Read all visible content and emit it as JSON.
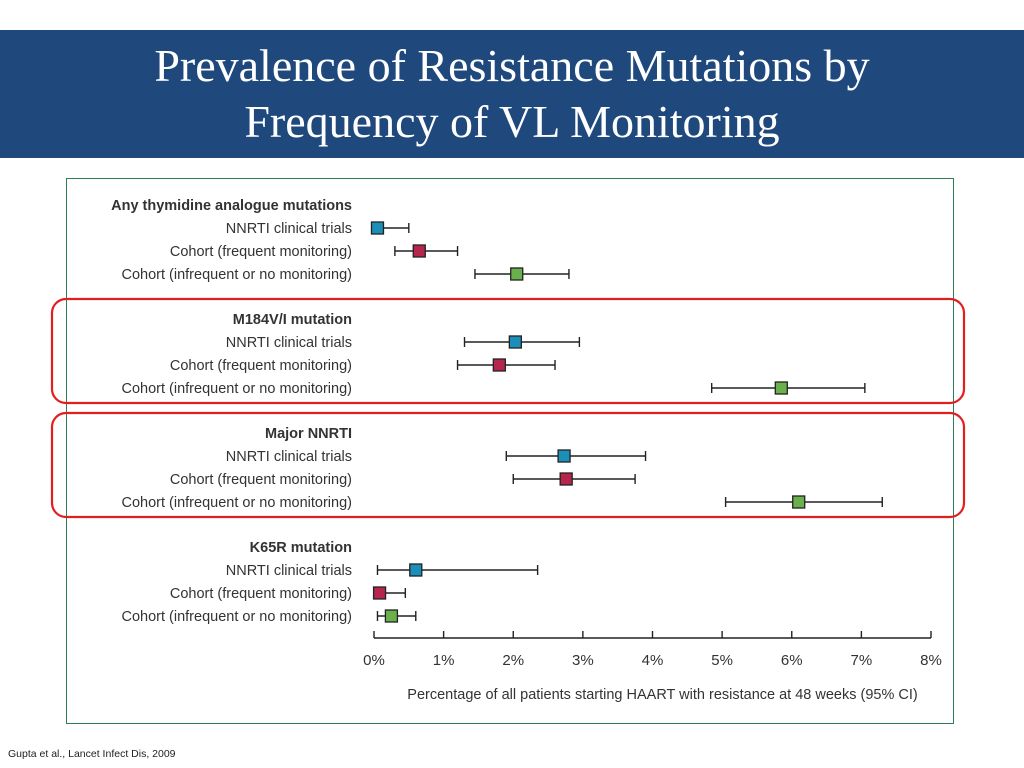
{
  "slide": {
    "title_line1": "Prevalence of Resistance Mutations by",
    "title_line2": "Frequency of VL Monitoring",
    "citation": "Gupta et al., Lancet Infect Dis, 2009"
  },
  "colors": {
    "title_band": "#1f497d",
    "nnrti_trials": "#1b8fb9",
    "cohort_frequent": "#b5254c",
    "cohort_infrequent": "#6ab04c",
    "highlight_box": "#e02020"
  },
  "chart_data": {
    "type": "forest",
    "xlabel": "Percentage of all patients starting HAART with resistance at 48 weeks (95% CI)",
    "xlim": [
      0,
      8
    ],
    "xticks": [
      "0%",
      "1%",
      "2%",
      "3%",
      "4%",
      "5%",
      "6%",
      "7%",
      "8%"
    ],
    "series_colors": {
      "NNRTI clinical trials": "#1b8fb9",
      "Cohort (frequent monitoring)": "#b5254c",
      "Cohort (infrequent or no monitoring)": "#6ab04c"
    },
    "groups": [
      {
        "title": "Any thymidine analogue mutations",
        "highlighted": false,
        "rows": [
          {
            "label": "NNRTI clinical trials",
            "estimate": 0.05,
            "ci_low": 0.0,
            "ci_high": 0.5
          },
          {
            "label": "Cohort (frequent monitoring)",
            "estimate": 0.65,
            "ci_low": 0.3,
            "ci_high": 1.2
          },
          {
            "label": "Cohort (infrequent or no monitoring)",
            "estimate": 2.05,
            "ci_low": 1.45,
            "ci_high": 2.8
          }
        ]
      },
      {
        "title": "M184V/I mutation",
        "highlighted": true,
        "rows": [
          {
            "label": "NNRTI clinical trials",
            "estimate": 2.03,
            "ci_low": 1.3,
            "ci_high": 2.95
          },
          {
            "label": "Cohort (frequent monitoring)",
            "estimate": 1.8,
            "ci_low": 1.2,
            "ci_high": 2.6
          },
          {
            "label": "Cohort (infrequent or no monitoring)",
            "estimate": 5.85,
            "ci_low": 4.85,
            "ci_high": 7.05
          }
        ]
      },
      {
        "title": "Major NNRTI",
        "highlighted": true,
        "rows": [
          {
            "label": "NNRTI clinical trials",
            "estimate": 2.73,
            "ci_low": 1.9,
            "ci_high": 3.9
          },
          {
            "label": "Cohort (frequent monitoring)",
            "estimate": 2.76,
            "ci_low": 2.0,
            "ci_high": 3.75
          },
          {
            "label": "Cohort (infrequent or no monitoring)",
            "estimate": 6.1,
            "ci_low": 5.05,
            "ci_high": 7.3
          }
        ]
      },
      {
        "title": "K65R mutation",
        "highlighted": false,
        "rows": [
          {
            "label": "NNRTI clinical trials",
            "estimate": 0.6,
            "ci_low": 0.05,
            "ci_high": 2.35
          },
          {
            "label": "Cohort (frequent monitoring)",
            "estimate": 0.08,
            "ci_low": 0.0,
            "ci_high": 0.45
          },
          {
            "label": "Cohort (infrequent or no monitoring)",
            "estimate": 0.25,
            "ci_low": 0.05,
            "ci_high": 0.6
          }
        ]
      }
    ]
  }
}
